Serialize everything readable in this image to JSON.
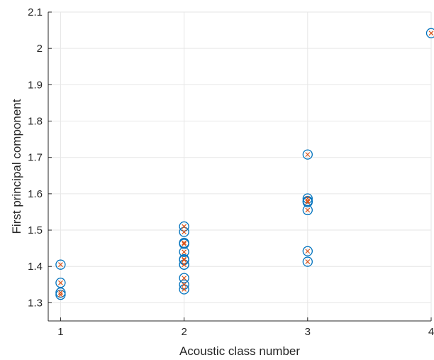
{
  "chart_data": {
    "type": "scatter",
    "title": "",
    "xlabel": "Acoustic class number",
    "ylabel": "First principal component",
    "xlim": [
      0.9,
      4
    ],
    "ylim": [
      1.25,
      2.1
    ],
    "xticks": [
      1,
      2,
      3,
      4
    ],
    "yticks": [
      1.3,
      1.4,
      1.5,
      1.6,
      1.7,
      1.8,
      1.9,
      2,
      2.1
    ],
    "xtick_labels": [
      "1",
      "2",
      "3",
      "4"
    ],
    "ytick_labels": [
      "1.3",
      "1.4",
      "1.5",
      "1.6",
      "1.7",
      "1.8",
      "1.9",
      "2",
      "2.1"
    ],
    "grid": true,
    "legend": "none",
    "series": [
      {
        "marker": "circle",
        "color": "#0072bd",
        "x": [
          1,
          1,
          1,
          1,
          2,
          2,
          2,
          2,
          2,
          2,
          2,
          2,
          2,
          2,
          2,
          2,
          3,
          3,
          3,
          3,
          3,
          3,
          3,
          4
        ],
        "y": [
          1.405,
          1.355,
          1.328,
          1.322,
          1.51,
          1.495,
          1.465,
          1.462,
          1.44,
          1.418,
          1.405,
          1.368,
          1.35,
          1.337,
          1.405,
          1.42,
          1.708,
          1.587,
          1.577,
          1.555,
          1.442,
          1.413,
          1.58,
          2.042
        ]
      },
      {
        "marker": "x",
        "color": "#d95319",
        "x": [
          1,
          1,
          1,
          1,
          2,
          2,
          2,
          2,
          2,
          2,
          2,
          2,
          2,
          2,
          2,
          2,
          3,
          3,
          3,
          3,
          3,
          3,
          3,
          4
        ],
        "y": [
          1.405,
          1.355,
          1.328,
          1.322,
          1.51,
          1.495,
          1.465,
          1.462,
          1.44,
          1.418,
          1.405,
          1.368,
          1.35,
          1.337,
          1.405,
          1.42,
          1.708,
          1.587,
          1.577,
          1.555,
          1.442,
          1.413,
          1.58,
          2.042
        ]
      }
    ]
  }
}
